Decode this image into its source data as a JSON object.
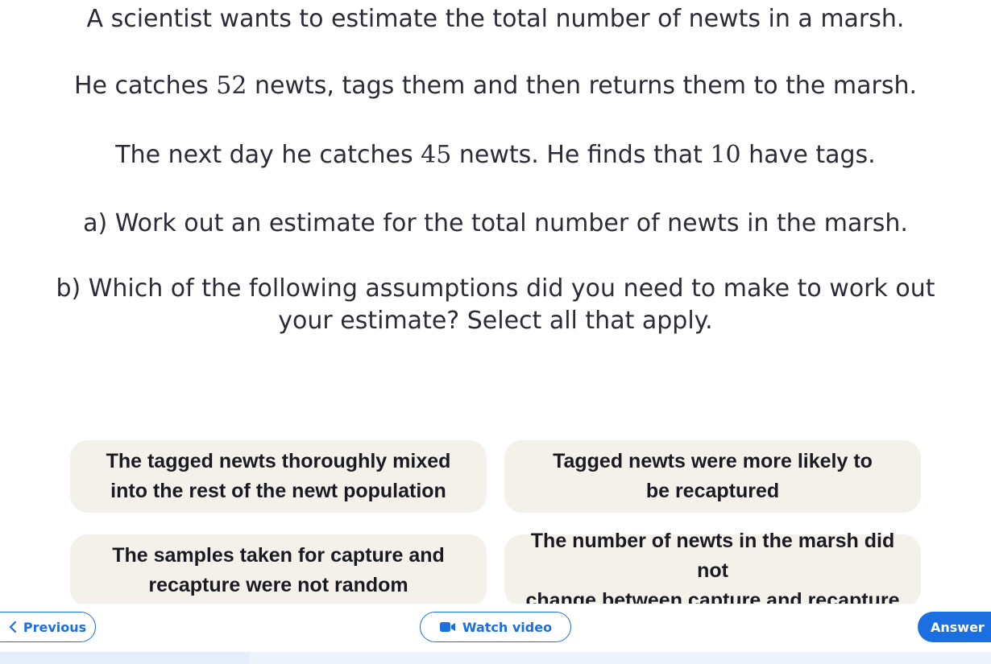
{
  "question": {
    "intro": "A scientist wants to estimate the total number of newts in a marsh.",
    "line2": {
      "before": "He catches ",
      "num": "52",
      "after": " newts, tags them and then returns them to the marsh."
    },
    "line3": {
      "before": "The next day he catches ",
      "num1": "45",
      "middle": " newts. He finds that ",
      "num2": "10",
      "after": " have tags."
    },
    "part_a": "a) Work out an estimate for the total number of newts in the marsh.",
    "part_b": "b) Which of the following assumptions did you need to make to work out your estimate? Select all that apply."
  },
  "options": [
    {
      "line1": "The tagged newts thoroughly mixed",
      "line2": "into the rest of the newt population"
    },
    {
      "line1": "Tagged newts were more likely to",
      "line2": "be recaptured"
    },
    {
      "line1": "The samples taken for capture and",
      "line2": "recapture were not random"
    },
    {
      "line1": "The number of newts in the marsh did not",
      "line2": "change between capture and recapture"
    }
  ],
  "footer": {
    "previous_label": "Previous",
    "video_label": "Watch video",
    "answer_label": "Answer",
    "previous_icon": "chevron-left-icon",
    "video_icon": "video-camera-icon"
  },
  "colors": {
    "accent": "#1b6fe0",
    "option_bg": "#f4f1ea",
    "text": "#2c2c39"
  }
}
